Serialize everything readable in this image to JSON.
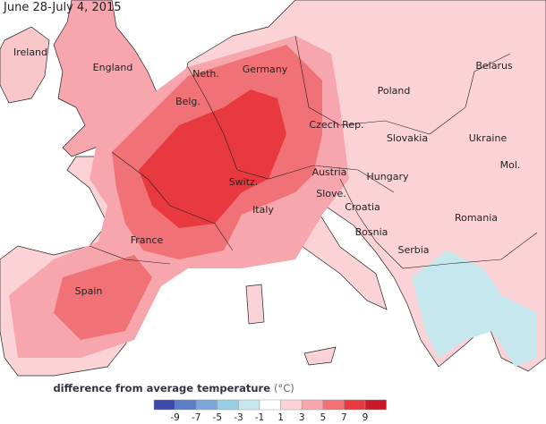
{
  "header": {
    "title": "June 28-July 4, 2015"
  },
  "labels": [
    "Ireland",
    "England",
    "Neth.",
    "Germany",
    "Belg.",
    "Poland",
    "Belarus",
    "Czech Rep.",
    "Slovakia",
    "Ukraine",
    "Mol.",
    "Austria",
    "Switz.",
    "Hungary",
    "Slove.",
    "Croatia",
    "Italy",
    "France",
    "Romania",
    "Bosnia",
    "Serbia",
    "Spain"
  ],
  "legend": {
    "title": "difference from average temperature",
    "unit": "(°C)",
    "ticks": [
      "-9",
      "-7",
      "-5",
      "-3",
      "-1",
      "1",
      "3",
      "5",
      "7",
      "9"
    ],
    "colors": [
      "#3b4aa8",
      "#5c7cc8",
      "#7aa6d8",
      "#98cde6",
      "#c6e7ee",
      "#ffffff",
      "#fbd3d6",
      "#f6a6ac",
      "#f07277",
      "#e83840",
      "#c8182a"
    ]
  }
}
